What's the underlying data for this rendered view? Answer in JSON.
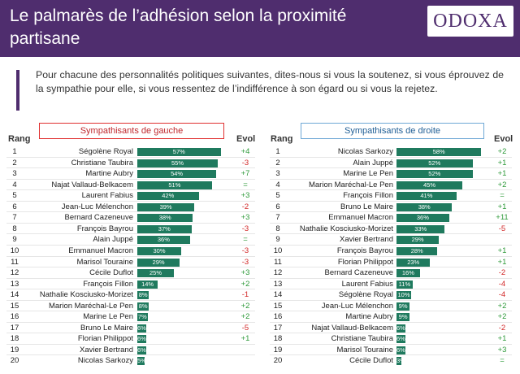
{
  "header": {
    "title": "Le palmarès de l’adhésion selon la proximité partisane",
    "logo_text": "ODOXA"
  },
  "intro": "Pour chacune des personnalités politiques suivantes, dites-nous si vous la soutenez, si vous éprouvez de la sympathie pour elle, si vous ressentez de l’indifférence à son égard ou si vous la rejetez.",
  "colors": {
    "header_bg": "#4f2d6e",
    "bar": "#1f7a5e",
    "positive": "#2e9a3a",
    "negative": "#d22828",
    "left_box": "#e03030",
    "right_box": "#6fa8d6"
  },
  "columns": {
    "rank": "Rang",
    "evol": "Evol"
  },
  "chart_data": [
    {
      "type": "bar",
      "title": "Sympathisants de gauche",
      "xlim": [
        0,
        60
      ],
      "ranks": [
        "1",
        "2",
        "3",
        "4",
        "5",
        "6",
        "7",
        "8",
        "9",
        "10",
        "11",
        "12",
        "13",
        "14",
        "15",
        "16",
        "17",
        "18",
        "19",
        "20"
      ],
      "categories": [
        "Ségolène Royal",
        "Christiane Taubira",
        "Martine Aubry",
        "Najat Vallaud-Belkacem",
        "Laurent Fabius",
        "Jean-Luc Mélenchon",
        "Bernard Cazeneuve",
        "François Bayrou",
        "Alain Juppé",
        "Emmanuel Macron",
        "Marisol Touraine",
        "Cécile Duflot",
        "François Fillon",
        "Nathalie Kosciusko-Morizet",
        "Marion Maréchal-Le Pen",
        "Marine Le Pen",
        "Bruno Le Maire",
        "Florian Philippot",
        "Xavier Bertrand",
        "Nicolas Sarkozy"
      ],
      "values": [
        57,
        55,
        54,
        51,
        42,
        39,
        38,
        37,
        36,
        30,
        29,
        25,
        14,
        8,
        8,
        7,
        6,
        6,
        6,
        5
      ],
      "labels": [
        "57%",
        "55%",
        "54%",
        "51%",
        "42%",
        "39%",
        "38%",
        "37%",
        "36%",
        "30%",
        "29%",
        "25%",
        "14%",
        "8%",
        "8%",
        "7%",
        "6%",
        "6%",
        "6%",
        "5%"
      ],
      "evol": [
        "+4",
        "-3",
        "+7",
        "=",
        "+3",
        "-2",
        "+3",
        "-3",
        "=",
        "-3",
        "-3",
        "+3",
        "+2",
        "-1",
        "+2",
        "+2",
        "-5",
        "+1",
        "",
        ""
      ]
    },
    {
      "type": "bar",
      "title": "Sympathisants de droite",
      "xlim": [
        0,
        60
      ],
      "ranks": [
        "1",
        "2",
        "3",
        "4",
        "5",
        "6",
        "7",
        "8",
        "9",
        "10",
        "11",
        "12",
        "13",
        "14",
        "15",
        "16",
        "17",
        "18",
        "19",
        "20"
      ],
      "categories": [
        "Nicolas Sarkozy",
        "Alain Juppé",
        "Marine Le Pen",
        "Marion Maréchal-Le Pen",
        "François Fillon",
        "Bruno Le Maire",
        "Emmanuel Macron",
        "Nathalie Kosciusko-Morizet",
        "Xavier Bertrand",
        "François Bayrou",
        "Florian Philippot",
        "Bernard Cazeneuve",
        "Laurent Fabius",
        "Ségolène Royal",
        "Jean-Luc Mélenchon",
        "Martine Aubry",
        "Najat Vallaud-Belkacem",
        "Christiane Taubira",
        "Marisol Touraine",
        "Cécile Duflot"
      ],
      "values": [
        58,
        52,
        52,
        45,
        41,
        38,
        36,
        33,
        29,
        28,
        23,
        16,
        11,
        10,
        9,
        9,
        6,
        6,
        6,
        3
      ],
      "labels": [
        "58%",
        "52%",
        "52%",
        "45%",
        "41%",
        "38%",
        "36%",
        "33%",
        "29%",
        "28%",
        "23%",
        "16%",
        "11%",
        "10%",
        "9%",
        "9%",
        "6%",
        "6%",
        "6%",
        "3%"
      ],
      "evol": [
        "+2",
        "+1",
        "+1",
        "+2",
        "=",
        "+1",
        "+11",
        "-5",
        "",
        "+1",
        "+1",
        "-2",
        "-4",
        "-4",
        "+2",
        "+2",
        "-2",
        "+1",
        "+3",
        "="
      ]
    }
  ]
}
